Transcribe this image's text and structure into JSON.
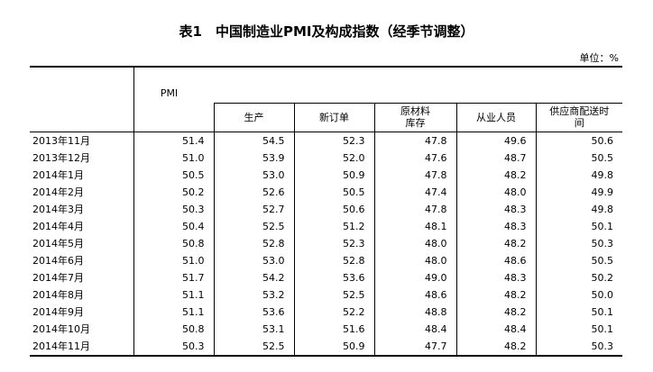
{
  "title": "表1　中国制造业PMI及构成指数（经季节调整）",
  "unit": "单位：%",
  "table": {
    "header": [
      "PMI",
      "生产",
      "新订单",
      "原材料\n库存",
      "从业人员",
      "供应商配送时\n间"
    ],
    "rows": [
      [
        "2013年11月",
        "51.4",
        "54.5",
        "52.3",
        "47.8",
        "49.6",
        "50.6"
      ],
      [
        "2013年12月",
        "51.0",
        "53.9",
        "52.0",
        "47.6",
        "48.7",
        "50.5"
      ],
      [
        "2014年1月",
        "50.5",
        "53.0",
        "50.9",
        "47.8",
        "48.2",
        "49.8"
      ],
      [
        "2014年2月",
        "50.2",
        "52.6",
        "50.5",
        "47.4",
        "48.0",
        "49.9"
      ],
      [
        "2014年3月",
        "50.3",
        "52.7",
        "50.6",
        "47.8",
        "48.3",
        "49.8"
      ],
      [
        "2014年4月",
        "50.4",
        "52.5",
        "51.2",
        "48.1",
        "48.3",
        "50.1"
      ],
      [
        "2014年5月",
        "50.8",
        "52.8",
        "52.3",
        "48.0",
        "48.2",
        "50.3"
      ],
      [
        "2014年6月",
        "51.0",
        "53.0",
        "52.8",
        "48.0",
        "48.6",
        "50.5"
      ],
      [
        "2014年7月",
        "51.7",
        "54.2",
        "53.6",
        "49.0",
        "48.3",
        "50.2"
      ],
      [
        "2014年8月",
        "51.1",
        "53.2",
        "52.5",
        "48.6",
        "48.2",
        "50.0"
      ],
      [
        "2014年9月",
        "51.1",
        "53.6",
        "52.2",
        "48.8",
        "48.2",
        "50.1"
      ],
      [
        "2014年10月",
        "50.8",
        "53.1",
        "51.6",
        "48.4",
        "48.4",
        "50.1"
      ],
      [
        "2014年11月",
        "50.3",
        "52.5",
        "50.9",
        "47.7",
        "48.2",
        "50.3"
      ]
    ]
  }
}
